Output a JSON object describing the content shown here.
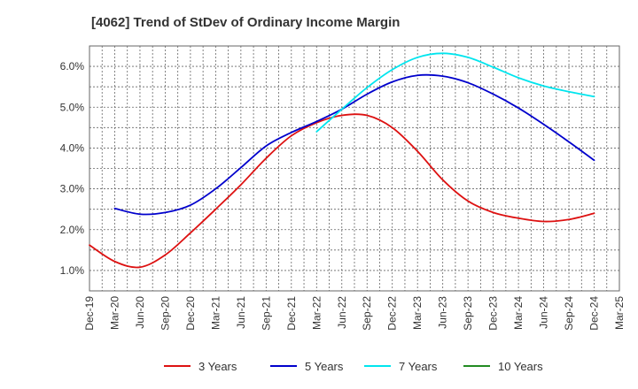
{
  "chart_data": {
    "type": "line",
    "title": "[4062]  Trend of StDev of Ordinary Income Margin",
    "xlabel": "",
    "ylabel": "",
    "ylim": [
      0.5,
      6.5
    ],
    "y_ticks": [
      "1.0%",
      "2.0%",
      "3.0%",
      "4.0%",
      "5.0%",
      "6.0%"
    ],
    "y_tick_values": [
      1.0,
      2.0,
      3.0,
      4.0,
      5.0,
      6.0
    ],
    "x_ticks": [
      "Dec-19",
      "Mar-20",
      "Jun-20",
      "Sep-20",
      "Dec-20",
      "Mar-21",
      "Jun-21",
      "Sep-21",
      "Dec-21",
      "Mar-22",
      "Jun-22",
      "Sep-22",
      "Dec-22",
      "Mar-23",
      "Jun-23",
      "Sep-23",
      "Dec-23",
      "Mar-24",
      "Jun-24",
      "Sep-24",
      "Dec-24",
      "Mar-25"
    ],
    "grid": true,
    "legend_position": "bottom",
    "series": [
      {
        "name": "3 Years",
        "color": "#dd1111",
        "x": [
          "Dec-19",
          "Mar-20",
          "Jun-20",
          "Sep-20",
          "Dec-20",
          "Mar-21",
          "Jun-21",
          "Sep-21",
          "Dec-21",
          "Mar-22",
          "Jun-22",
          "Sep-22",
          "Dec-22",
          "Mar-23",
          "Jun-23",
          "Sep-23",
          "Dec-23",
          "Mar-24",
          "Jun-24",
          "Sep-24",
          "Dec-24"
        ],
        "values": [
          1.62,
          1.22,
          1.08,
          1.38,
          1.92,
          2.5,
          3.1,
          3.75,
          4.3,
          4.62,
          4.8,
          4.8,
          4.5,
          3.92,
          3.22,
          2.7,
          2.42,
          2.28,
          2.2,
          2.25,
          2.4
        ]
      },
      {
        "name": "5 Years",
        "color": "#0000cc",
        "x": [
          "Mar-20",
          "Jun-20",
          "Sep-20",
          "Dec-20",
          "Mar-21",
          "Jun-21",
          "Sep-21",
          "Dec-21",
          "Mar-22",
          "Jun-22",
          "Sep-22",
          "Dec-22",
          "Mar-23",
          "Jun-23",
          "Sep-23",
          "Dec-23",
          "Mar-24",
          "Jun-24",
          "Sep-24",
          "Dec-24"
        ],
        "values": [
          2.52,
          2.38,
          2.42,
          2.6,
          3.0,
          3.52,
          4.05,
          4.38,
          4.65,
          4.95,
          5.32,
          5.62,
          5.78,
          5.76,
          5.6,
          5.32,
          4.98,
          4.58,
          4.15,
          3.7
        ]
      },
      {
        "name": "7 Years",
        "color": "#00e5ee",
        "x": [
          "Mar-22",
          "Jun-22",
          "Sep-22",
          "Dec-22",
          "Mar-23",
          "Jun-23",
          "Sep-23",
          "Dec-23",
          "Mar-24",
          "Jun-24",
          "Sep-24",
          "Dec-24"
        ],
        "values": [
          4.4,
          4.95,
          5.48,
          5.92,
          6.22,
          6.32,
          6.22,
          5.98,
          5.72,
          5.52,
          5.38,
          5.26
        ]
      },
      {
        "name": "10 Years",
        "color": "#228b22",
        "x": [],
        "values": []
      }
    ]
  }
}
